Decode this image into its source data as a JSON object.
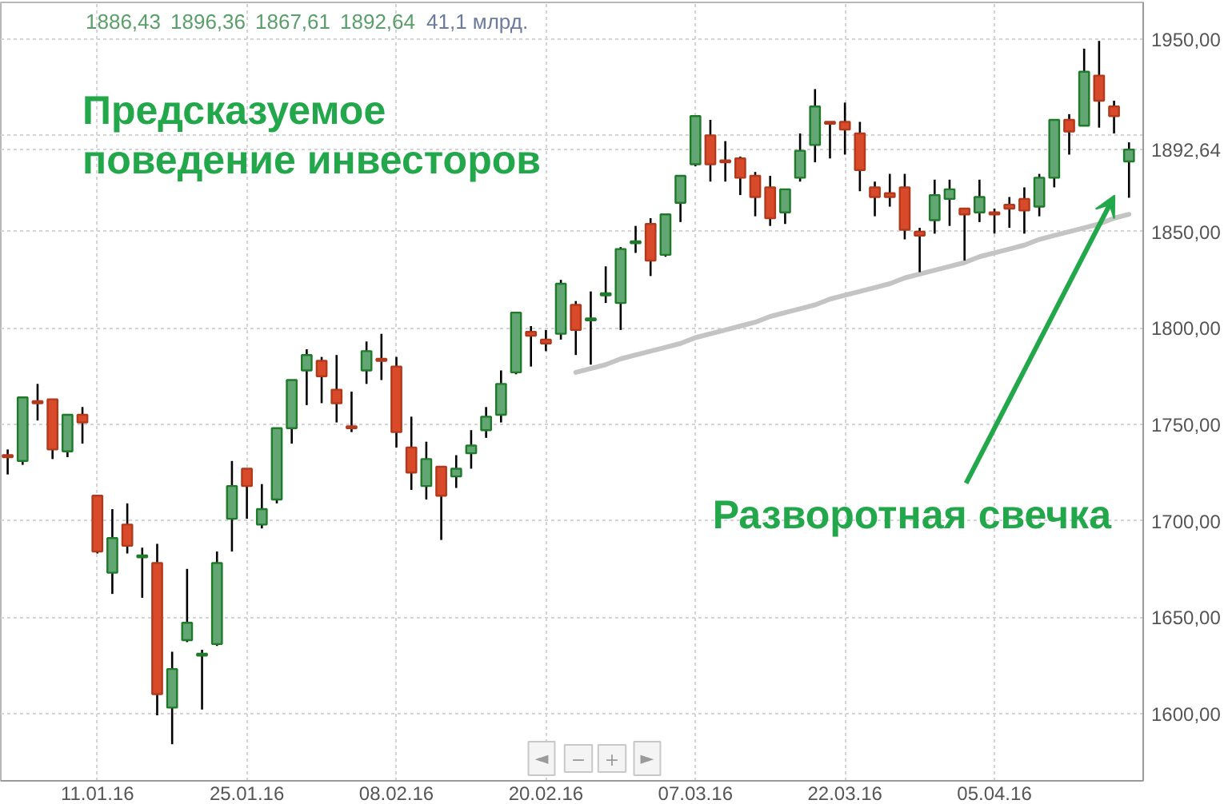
{
  "chart_data": {
    "type": "candlestick",
    "title": "Предсказуемое\nповедение инвесторов",
    "categories": [
      null,
      null,
      null,
      null,
      null,
      null,
      "11.01.16",
      null,
      null,
      null,
      null,
      null,
      null,
      null,
      null,
      null,
      "25.01.16",
      null,
      null,
      null,
      null,
      null,
      null,
      null,
      null,
      null,
      "08.02.16",
      null,
      null,
      null,
      null,
      null,
      null,
      null,
      null,
      null,
      "20.02.16",
      null,
      null,
      null,
      null,
      null,
      null,
      null,
      null,
      null,
      "07.03.16",
      null,
      null,
      null,
      null,
      null,
      null,
      null,
      null,
      null,
      "22.03.16",
      null,
      null,
      null,
      null,
      null,
      null,
      null,
      null,
      null,
      "05.04.16",
      null,
      null,
      null,
      null,
      null,
      null,
      null,
      null,
      null
    ],
    "ohlc": [
      [
        1734,
        1737,
        1724,
        1733
      ],
      [
        1731,
        1764,
        1729,
        1764
      ],
      [
        1762,
        1771,
        1752,
        1761
      ],
      [
        1763,
        1763,
        1732,
        1737
      ],
      [
        1736,
        1755,
        1733,
        1755
      ],
      [
        1755,
        1759,
        1740,
        1751
      ],
      [
        1713,
        1713,
        1683,
        1684
      ],
      [
        1673,
        1706,
        1662,
        1691
      ],
      [
        1698,
        1709,
        1683,
        1687
      ],
      [
        1681,
        1686,
        1660,
        1682
      ],
      [
        1678,
        1688,
        1599,
        1610
      ],
      [
        1603,
        1632,
        1584,
        1623
      ],
      [
        1638,
        1675,
        1637,
        1647
      ],
      [
        1630,
        1633,
        1602,
        1631
      ],
      [
        1636,
        1684,
        1635,
        1678
      ],
      [
        1701,
        1731,
        1684,
        1718
      ],
      [
        1727,
        1727,
        1701,
        1718
      ],
      [
        1698,
        1719,
        1696,
        1706
      ],
      [
        1711,
        1748,
        1709,
        1748
      ],
      [
        1748,
        1773,
        1740,
        1773
      ],
      [
        1778,
        1789,
        1760,
        1786
      ],
      [
        1783,
        1785,
        1761,
        1775
      ],
      [
        1768,
        1786,
        1751,
        1761
      ],
      [
        1749,
        1767,
        1746,
        1748
      ],
      [
        1778,
        1793,
        1771,
        1788
      ],
      [
        1784,
        1797,
        1773,
        1783
      ],
      [
        1780,
        1785,
        1738,
        1746
      ],
      [
        1738,
        1754,
        1716,
        1725
      ],
      [
        1718,
        1741,
        1711,
        1732
      ],
      [
        1728,
        1728,
        1690,
        1713
      ],
      [
        1723,
        1734,
        1717,
        1727
      ],
      [
        1735,
        1747,
        1727,
        1739
      ],
      [
        1747,
        1759,
        1743,
        1754
      ],
      [
        1755,
        1778,
        1751,
        1771
      ],
      [
        1777,
        1808,
        1776,
        1808
      ],
      [
        1798,
        1801,
        1780,
        1796
      ],
      [
        1794,
        1799,
        1788,
        1792
      ],
      [
        1797,
        1825,
        1794,
        1823
      ],
      [
        1812,
        1814,
        1786,
        1799
      ],
      [
        1804,
        1819,
        1781,
        1805
      ],
      [
        1817,
        1832,
        1813,
        1818
      ],
      [
        1813,
        1842,
        1799,
        1841
      ],
      [
        1844,
        1853,
        1839,
        1845
      ],
      [
        1854,
        1857,
        1827,
        1835
      ],
      [
        1838,
        1859,
        1837,
        1859
      ],
      [
        1865,
        1879,
        1855,
        1879
      ],
      [
        1885,
        1910,
        1884,
        1910
      ],
      [
        1900,
        1908,
        1876,
        1885
      ],
      [
        1887,
        1897,
        1876,
        1886
      ],
      [
        1888,
        1889,
        1869,
        1878
      ],
      [
        1879,
        1881,
        1858,
        1868
      ],
      [
        1873,
        1879,
        1853,
        1857
      ],
      [
        1860,
        1872,
        1854,
        1872
      ],
      [
        1878,
        1901,
        1876,
        1892
      ],
      [
        1895,
        1924,
        1886,
        1915
      ],
      [
        1907,
        1907,
        1888,
        1906
      ],
      [
        1907,
        1917,
        1890,
        1903
      ],
      [
        1901,
        1907,
        1871,
        1882
      ],
      [
        1873,
        1876,
        1858,
        1868
      ],
      [
        1870,
        1880,
        1863,
        1868
      ],
      [
        1873,
        1880,
        1846,
        1851
      ],
      [
        1850,
        1852,
        1829,
        1848
      ],
      [
        1856,
        1877,
        1849,
        1869
      ],
      [
        1867,
        1877,
        1853,
        1872
      ],
      [
        1862,
        1862,
        1835,
        1859
      ],
      [
        1860,
        1877,
        1855,
        1868
      ],
      [
        1860,
        1862,
        1849,
        1859
      ],
      [
        1864,
        1868,
        1852,
        1862
      ],
      [
        1867,
        1873,
        1849,
        1861
      ],
      [
        1863,
        1880,
        1858,
        1878
      ],
      [
        1878,
        1908,
        1873,
        1908
      ],
      [
        1908,
        1911,
        1890,
        1902
      ],
      [
        1905,
        1945,
        1905,
        1933
      ],
      [
        1931,
        1949,
        1904,
        1918
      ],
      [
        1915,
        1918,
        1901,
        1910
      ],
      [
        1886.43,
        1896.36,
        1867.61,
        1892.64
      ]
    ],
    "series": [
      {
        "type": "line",
        "color": "#c4c4c4",
        "values": [
          null,
          null,
          null,
          null,
          null,
          null,
          null,
          null,
          null,
          null,
          null,
          null,
          null,
          null,
          null,
          null,
          null,
          null,
          null,
          null,
          null,
          null,
          null,
          null,
          null,
          null,
          null,
          null,
          null,
          null,
          null,
          null,
          null,
          null,
          null,
          null,
          null,
          null,
          1777,
          1779,
          1781,
          1784,
          1786,
          1788,
          1790,
          1792,
          1795,
          1797,
          1799,
          1801,
          1803,
          1806,
          1808,
          1810,
          1812,
          1815,
          1817,
          1819,
          1821,
          1823,
          1826,
          1828,
          1830,
          1832,
          1834,
          1837,
          1839,
          1841,
          1843,
          1846,
          1848,
          1850,
          1852,
          1854,
          1857,
          1859
        ]
      }
    ],
    "ylim": [
      1565,
      1969
    ],
    "yticks": [
      {
        "value": 1600,
        "label": "1600,00"
      },
      {
        "value": 1650,
        "label": "1650,00"
      },
      {
        "value": 1700,
        "label": "1700,00"
      },
      {
        "value": 1750,
        "label": "1750,00"
      },
      {
        "value": 1800,
        "label": "1800,00"
      },
      {
        "value": 1850,
        "label": "1850,00"
      },
      {
        "value": 1892.64,
        "label": "1892,64"
      },
      {
        "value": 1900,
        "label": null
      },
      {
        "value": 1950,
        "label": "1950,00"
      }
    ],
    "grid": true,
    "annotations": [
      "1886,43",
      "1896,36",
      "1867,61",
      "1892,64",
      "41,1 млрд.",
      "Разворотная свечка",
      "◄",
      "−",
      "+",
      "►"
    ]
  }
}
